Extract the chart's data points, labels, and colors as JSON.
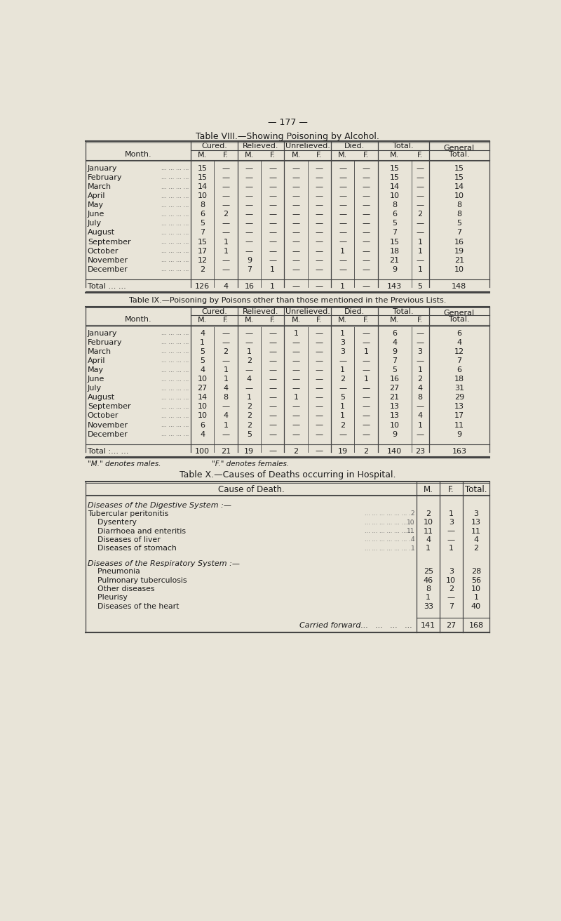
{
  "page_number": "— 177 —",
  "bg_color": "#e8e4d8",
  "text_color": "#1a1a1a",
  "table8_title": "Table VIII.—Showing Poisoning by Alcohol.",
  "table8_months": [
    "January",
    "February",
    "March",
    "April",
    "May",
    "June",
    "July",
    "August",
    "September",
    "October",
    "November",
    "December"
  ],
  "table8_data": [
    [
      15,
      "—",
      "—",
      "—",
      "—",
      "—",
      "—",
      "—",
      15,
      "—",
      15
    ],
    [
      15,
      "—",
      "—",
      "—",
      "—",
      "—",
      "—",
      "—",
      15,
      "—",
      15
    ],
    [
      14,
      "—",
      "—",
      "—",
      "—",
      "—",
      "—",
      "—",
      14,
      "—",
      14
    ],
    [
      10,
      "—",
      "—",
      "—",
      "—",
      "—",
      "—",
      "—",
      10,
      "—",
      10
    ],
    [
      8,
      "—",
      "—",
      "—",
      "—",
      "—",
      "—",
      "—",
      8,
      "—",
      8
    ],
    [
      6,
      2,
      "—",
      "—",
      "—",
      "—",
      "—",
      "—",
      6,
      2,
      8
    ],
    [
      5,
      "—",
      "—",
      "—",
      "—",
      "—",
      "—",
      "—",
      5,
      "—",
      5
    ],
    [
      7,
      "—",
      "—",
      "—",
      "—",
      "—",
      "—",
      "—",
      7,
      "—",
      7
    ],
    [
      15,
      1,
      "—",
      "—",
      "—",
      "—",
      "—",
      "—",
      15,
      1,
      16
    ],
    [
      17,
      1,
      "—",
      "—",
      "—",
      "—",
      1,
      "—",
      18,
      1,
      19
    ],
    [
      12,
      "—",
      9,
      "—",
      "—",
      "—",
      "—",
      "—",
      21,
      "—",
      21
    ],
    [
      2,
      "—",
      7,
      1,
      "—",
      "—",
      "—",
      "—",
      9,
      1,
      10
    ]
  ],
  "table8_total": [
    126,
    4,
    16,
    1,
    "—",
    "—",
    1,
    "—",
    143,
    5,
    148
  ],
  "table9_title": "Table IX.—Poisoning by Poisons other than those mentioned in the Previous Lists.",
  "table9_months": [
    "January",
    "February",
    "March",
    "April",
    "May",
    "June",
    "July",
    "August",
    "September",
    "October",
    "November",
    "December"
  ],
  "table9_dots": [
    "... ... ... ...",
    "... ... ... ...",
    "... ... ... ...",
    "... ... ... ...",
    "... ... ... ...",
    "... ... ... ...",
    "... ... ... ...",
    "... ... ... ...",
    "... ... ... ...",
    "... ... ... ...",
    ":.. ... ... ...",
    "... ... ... ..."
  ],
  "table9_data": [
    [
      4,
      "—",
      "—",
      "—",
      1,
      "—",
      1,
      "—",
      6,
      "—",
      6
    ],
    [
      1,
      "—",
      "—",
      "—",
      "—",
      "—",
      3,
      "—",
      4,
      "—",
      4
    ],
    [
      5,
      2,
      1,
      "—",
      "—",
      "—",
      3,
      1,
      9,
      3,
      12
    ],
    [
      5,
      "—",
      2,
      "—",
      "—",
      "—",
      "—",
      "—",
      7,
      "—",
      7
    ],
    [
      4,
      1,
      "—",
      "—",
      "—",
      "—",
      1,
      "—",
      5,
      1,
      6
    ],
    [
      10,
      1,
      4,
      "—",
      "—",
      "—",
      2,
      1,
      16,
      2,
      18
    ],
    [
      27,
      4,
      "—",
      "—",
      "—",
      "—",
      "—",
      "—",
      27,
      4,
      31
    ],
    [
      14,
      8,
      1,
      "—",
      1,
      "—",
      5,
      "—",
      21,
      8,
      29
    ],
    [
      10,
      "—",
      2,
      "—",
      "—",
      "—",
      1,
      "—",
      13,
      "—",
      13
    ],
    [
      10,
      4,
      2,
      "—",
      "—",
      "—",
      1,
      "—",
      13,
      4,
      17
    ],
    [
      6,
      1,
      2,
      "—",
      "—",
      "—",
      2,
      "—",
      10,
      1,
      11
    ],
    [
      4,
      "—",
      5,
      "—",
      "—",
      "—",
      "—",
      "—",
      9,
      "—",
      9
    ]
  ],
  "table9_total": [
    100,
    21,
    19,
    "—",
    2,
    "—",
    19,
    2,
    140,
    23,
    163
  ],
  "table9_footnote1": "\"M.\" denotes males.",
  "table9_footnote2": "\"F.\" denotes females.",
  "table10_title": "Table X.—Causes of Deaths occurring in Hospital.",
  "table10_section1_header": "Diseases of the Digestive System :—",
  "table10_section1_rows": [
    [
      "Tubercular peritonitis",
      "... ... ... .. ... ... ... ... ... ...",
      2,
      1,
      3
    ],
    [
      "    Dysentery",
      "... ... ... ... ... ... ... ... ... ... ...",
      10,
      3,
      13
    ],
    [
      "    Diarrhoea and enteritis",
      "... ... ... ... ... ... ... ...",
      11,
      "—",
      11
    ],
    [
      "    Diseases of liver",
      "... ... ... ... ... ... ... ... ... ...",
      4,
      "—",
      4
    ],
    [
      "    Diseases of stomach",
      "... ... ... ... ... ... ... ... ...",
      1,
      1,
      2
    ]
  ],
  "table10_section2_header": "Diseases of the Respiratory System :—",
  "table10_section2_rows": [
    [
      "    Pneumonia",
      "... ... ... ... ... ... ... ... ... ... ...",
      25,
      3,
      28
    ],
    [
      "    Pulmonary tuberculosis",
      "... ... ... ... ... .. ... ...",
      46,
      10,
      56
    ],
    [
      "    Other diseases",
      "... ... ... ... ... ... ... ... ... ...",
      8,
      2,
      10
    ],
    [
      "    Pleurisy",
      "... ... ... ... ... ... ... ... ... ... ...",
      1,
      "—",
      1
    ],
    [
      "    Diseases of the heart",
      "... ... ... ... ... ... ... .. ..",
      33,
      7,
      40
    ]
  ],
  "table10_carried": [
    141,
    27,
    168
  ]
}
